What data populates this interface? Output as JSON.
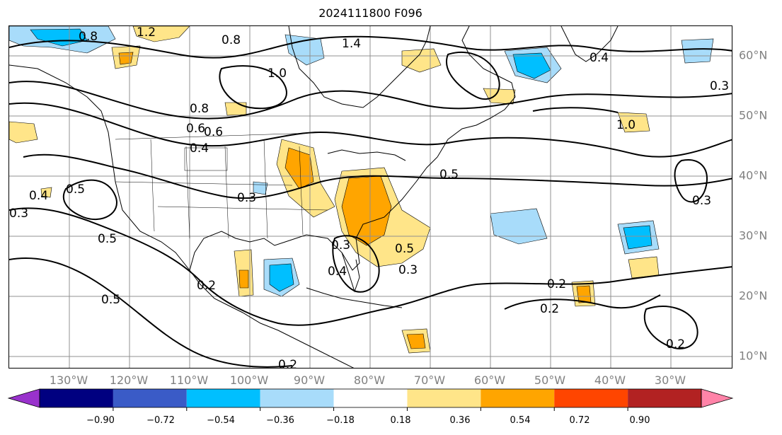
{
  "title": "2024111800 F096",
  "map": {
    "lon_labels": [
      "130°W",
      "120°W",
      "110°W",
      "100°W",
      "90°W",
      "80°W",
      "70°W",
      "60°W",
      "50°W",
      "40°W",
      "30°W"
    ],
    "lat_labels": [
      "60°N",
      "50°N",
      "40°N",
      "30°N",
      "20°N",
      "10°N"
    ],
    "contour_labels": [
      "0.8",
      "1.2",
      "0.8",
      "1.4",
      "0.6",
      "0.5",
      "0.4",
      "0.4",
      "0.3",
      "0.3",
      "0.3",
      "0.2",
      "0.2",
      "1.0",
      "1.0",
      "0.8",
      "0.6",
      "0.4",
      "0.5",
      "0.5",
      "0.5",
      "0.4",
      "0.3",
      "0.2",
      "0.3",
      "0.5",
      "0.3",
      "0.2",
      "0.2"
    ],
    "shading_colors": {
      "neg_light": "#a8dcfa",
      "neg_mid": "#00bfff",
      "pos_light": "#ffe589",
      "pos_mid": "#ffa500"
    }
  },
  "colorbar": {
    "ticks": [
      "−0.90",
      "−0.72",
      "−0.54",
      "−0.36",
      "−0.18",
      "0.18",
      "0.36",
      "0.54",
      "0.72",
      "0.90"
    ],
    "colors": [
      "#9932cc",
      "#000080",
      "#3a5bc7",
      "#00bfff",
      "#a8dcfa",
      "#ffffff",
      "#ffe589",
      "#ffa500",
      "#ff4500",
      "#b22222",
      "#ff83a8"
    ]
  }
}
